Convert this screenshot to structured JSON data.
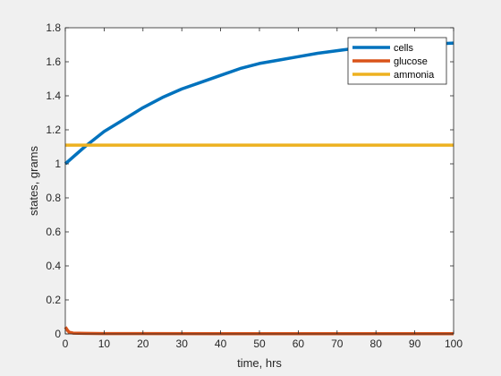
{
  "chart_data": {
    "type": "line",
    "title": "",
    "xlabel": "time, hrs",
    "ylabel": "states, grams",
    "xlim": [
      0,
      100
    ],
    "ylim": [
      0,
      1.8
    ],
    "xticks": [
      0,
      10,
      20,
      30,
      40,
      50,
      60,
      70,
      80,
      90,
      100
    ],
    "yticks": [
      0,
      0.2,
      0.4,
      0.6,
      0.8,
      1,
      1.2,
      1.4,
      1.6,
      1.8
    ],
    "ytick_labels": [
      "0",
      "0.2",
      "0.4",
      "0.6",
      "0.8",
      "1",
      "1.2",
      "1.4",
      "1.6",
      "1.8"
    ],
    "grid": false,
    "legend_position": "top-right",
    "series": [
      {
        "name": "cells",
        "color": "#0072BD",
        "x": [
          0,
          5,
          10,
          15,
          20,
          25,
          30,
          35,
          40,
          45,
          50,
          55,
          60,
          65,
          70,
          75,
          80,
          85,
          90,
          95,
          100
        ],
        "y": [
          1.0,
          1.1,
          1.19,
          1.26,
          1.33,
          1.39,
          1.44,
          1.48,
          1.52,
          1.56,
          1.59,
          1.61,
          1.63,
          1.65,
          1.665,
          1.68,
          1.69,
          1.695,
          1.7,
          1.705,
          1.71
        ]
      },
      {
        "name": "glucose",
        "color": "#D95319",
        "x": [
          0,
          0.3,
          0.6,
          1,
          2,
          5,
          10,
          20,
          40,
          60,
          80,
          100
        ],
        "y": [
          0.04,
          0.03,
          0.02,
          0.01,
          0.005,
          0.003,
          0.002,
          0.002,
          0.001,
          0.001,
          0.001,
          0.001
        ]
      },
      {
        "name": "ammonia",
        "color": "#EDB120",
        "x": [
          0,
          100
        ],
        "y": [
          1.11,
          1.11
        ]
      }
    ]
  }
}
